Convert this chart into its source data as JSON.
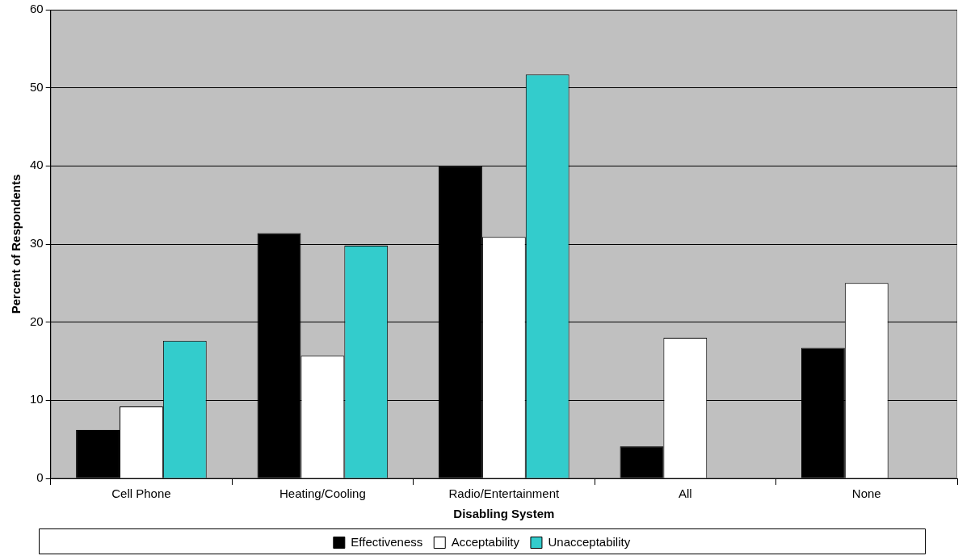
{
  "chart_data": {
    "type": "bar",
    "xlabel": "Disabling System",
    "ylabel": "Percent of Respondents",
    "categories": [
      "Cell Phone",
      "Heating/Cooling",
      "Radio/Entertainment",
      "All",
      "None"
    ],
    "series": [
      {
        "name": "Effectiveness",
        "color": "#000000",
        "values": [
          6.2,
          31.4,
          40.0,
          4.1,
          16.7
        ]
      },
      {
        "name": "Acceptability",
        "color": "#ffffff",
        "values": [
          9.2,
          15.7,
          30.9,
          18.0,
          25.0
        ]
      },
      {
        "name": "Unacceptability",
        "color": "#33cccc",
        "values": [
          17.6,
          29.8,
          51.7,
          null,
          null
        ]
      }
    ],
    "ylim": [
      0,
      60
    ],
    "yticks": [
      0,
      10,
      20,
      30,
      40,
      50,
      60
    ],
    "grid": "y",
    "legend": "bottom"
  }
}
